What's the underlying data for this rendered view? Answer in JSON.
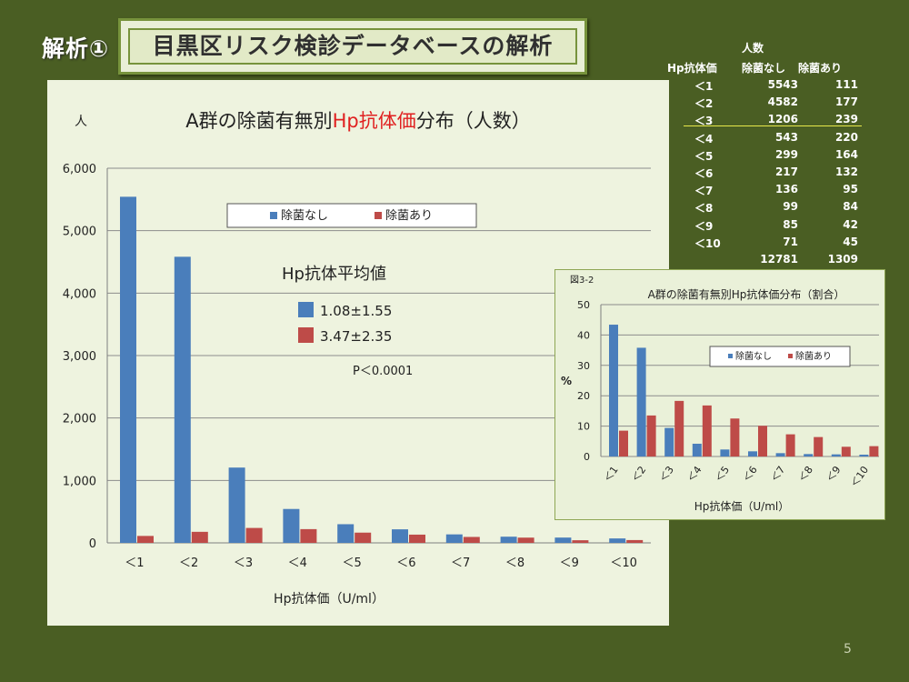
{
  "slide_label": "解析①",
  "page_title": "目黒区リスク検診データベースの解析",
  "table": {
    "header_group": "人数",
    "col_label": "Hp抗体価",
    "col_no": "除菌なし",
    "col_yes": "除菌あり",
    "rows": [
      {
        "label": "＜1",
        "no": "5543",
        "yes": "111"
      },
      {
        "label": "＜2",
        "no": "4582",
        "yes": "177"
      },
      {
        "label": "＜3",
        "no": "1206",
        "yes": "239"
      },
      {
        "label": "＜4",
        "no": "543",
        "yes": "220"
      },
      {
        "label": "＜5",
        "no": "299",
        "yes": "164"
      },
      {
        "label": "＜6",
        "no": "217",
        "yes": "132"
      },
      {
        "label": "＜7",
        "no": "136",
        "yes": "95"
      },
      {
        "label": "＜8",
        "no": "99",
        "yes": "84"
      },
      {
        "label": "＜9",
        "no": "85",
        "yes": "42"
      },
      {
        "label": "＜10",
        "no": "71",
        "yes": "45"
      }
    ],
    "total_no": "12781",
    "total_yes": "1309",
    "divider_color": "#e8e84a"
  },
  "chart_data": [
    {
      "type": "bar",
      "title_before": "A群の除菌有無別",
      "title_highlight": "Hp抗体価",
      "title_after": "分布（人数）",
      "title_highlight_color": "#e02020",
      "ylabel": "人",
      "xlabel": "Hp抗体価（U/ml）",
      "ylim": [
        0,
        6000
      ],
      "yticks": [
        "0",
        "1,000",
        "2,000",
        "3,000",
        "4,000",
        "5,000",
        "6,000"
      ],
      "categories": [
        "＜1",
        "＜2",
        "＜3",
        "＜4",
        "＜5",
        "＜6",
        "＜7",
        "＜8",
        "＜9",
        "＜10"
      ],
      "series": [
        {
          "name": "除菌なし",
          "color": "#4a7ebb",
          "values": [
            5543,
            4582,
            1206,
            543,
            299,
            217,
            136,
            99,
            85,
            71
          ]
        },
        {
          "name": "除菌あり",
          "color": "#be4b48",
          "values": [
            111,
            177,
            239,
            220,
            164,
            132,
            95,
            84,
            42,
            45
          ]
        }
      ],
      "legend_position": "top-center",
      "grid": true,
      "annotation_title": "Hp抗体平均値",
      "annotation_entries": [
        {
          "text": "1.08±1.55",
          "color": "#4a7ebb"
        },
        {
          "text": "3.47±2.35",
          "color": "#be4b48"
        }
      ],
      "annotation_p": "P＜0.0001"
    },
    {
      "type": "bar",
      "figure_label": "図3-2",
      "title": "A群の除菌有無別Hp抗体価分布（割合）",
      "ylabel": "%",
      "xlabel": "Hp抗体価（U/ml）",
      "ylim": [
        0,
        50
      ],
      "yticks": [
        "0",
        "10",
        "20",
        "30",
        "40",
        "50"
      ],
      "categories": [
        "＜1",
        "＜2",
        "＜3",
        "＜4",
        "＜5",
        "＜6",
        "＜7",
        "＜8",
        "＜9",
        "＜10"
      ],
      "series": [
        {
          "name": "除菌なし",
          "color": "#4a7ebb",
          "values": [
            43.4,
            35.8,
            9.4,
            4.2,
            2.3,
            1.7,
            1.1,
            0.8,
            0.7,
            0.6
          ]
        },
        {
          "name": "除菌あり",
          "color": "#be4b48",
          "values": [
            8.5,
            13.5,
            18.3,
            16.8,
            12.5,
            10.1,
            7.3,
            6.4,
            3.2,
            3.4
          ]
        }
      ],
      "legend_position": "top-right",
      "grid": true
    }
  ],
  "page_number": "5"
}
